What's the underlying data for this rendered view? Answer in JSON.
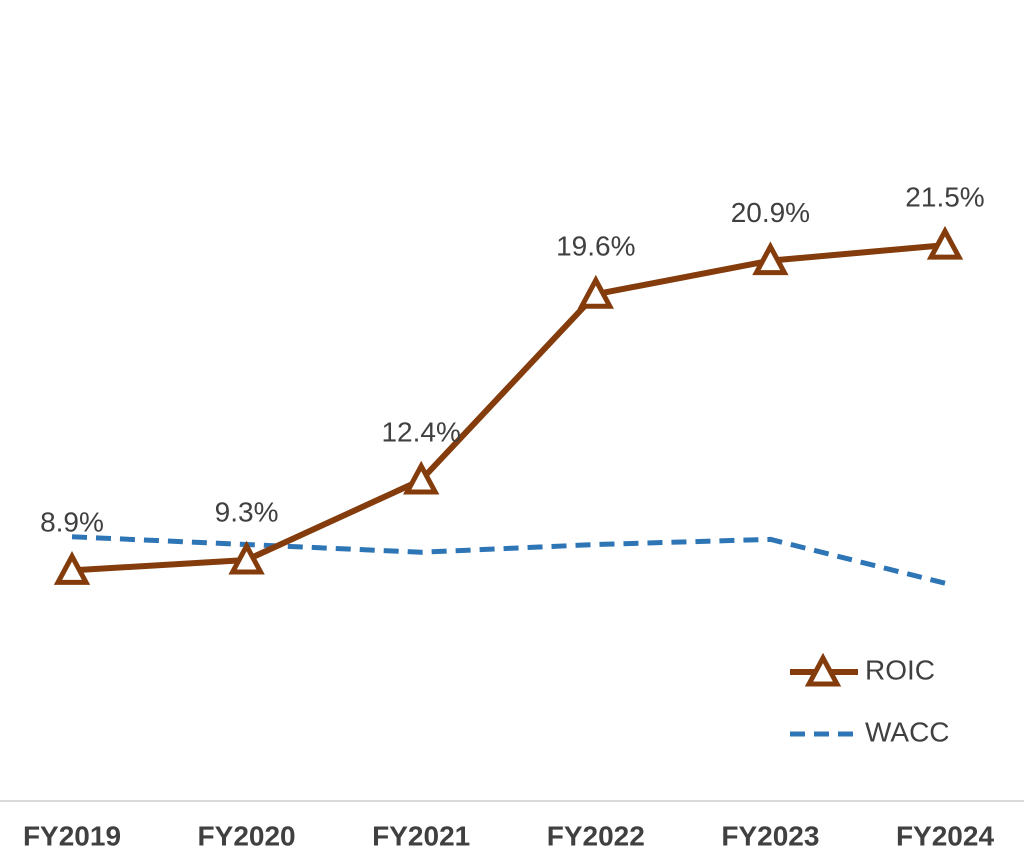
{
  "chart_data": {
    "type": "line",
    "categories": [
      "FY2019",
      "FY2020",
      "FY2021",
      "FY2022",
      "FY2023",
      "FY2024"
    ],
    "series": [
      {
        "name": "ROIC",
        "color": "#843c0c",
        "values": [
          8.9,
          9.3,
          12.4,
          19.6,
          20.9,
          21.5
        ],
        "value_labels": [
          "8.9%",
          "9.3%",
          "12.4%",
          "19.6%",
          "20.9%",
          "21.5%"
        ],
        "marker": "triangle"
      },
      {
        "name": "WACC",
        "color": "#2e75b6",
        "values": [
          10.2,
          9.9,
          9.6,
          9.9,
          10.1,
          8.4
        ],
        "dashed": true
      }
    ],
    "ylim": [
      0,
      31
    ],
    "legend": "lower right"
  }
}
